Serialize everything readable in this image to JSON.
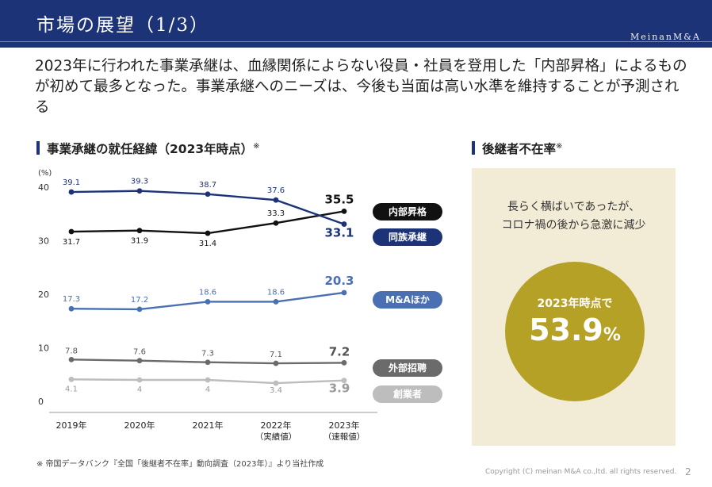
{
  "header": {
    "title": "市場の展望（1/3）",
    "brand": "MeinanM&A"
  },
  "lead": "2023年に行われた事業承継は、血縁関係によらない役員・社員を登用した「内部昇格」によるものが初めて最多となった。事業承継へのニーズは、今後も当面は高い水準を維持することが予測される",
  "left_section": {
    "title": "事業承継の就任経緯（2023年時点）",
    "mark": "※"
  },
  "right_section": {
    "title": "後継者不在率",
    "mark": "※",
    "note_line1": "長らく横ばいであったが、",
    "note_line2": "コロナ禍の後から急激に減少",
    "circle_label": "2023年時点で",
    "circle_value": "53.9",
    "circle_unit": "%"
  },
  "source": "※ 帝国データバンク『全国「後継者不在率」動向調査（2023年）』より当社作成",
  "copyright": "Copyright (C) meinan M&A co.,ltd. all rights reserved.",
  "page_number": "2",
  "chart_data": {
    "type": "line",
    "yunit": "(%)",
    "ylim": [
      0,
      40
    ],
    "yticks": [
      0,
      10,
      20,
      30,
      40
    ],
    "grid": false,
    "legend_position": "right",
    "categories": [
      {
        "line1": "2019年",
        "line2": ""
      },
      {
        "line1": "2020年",
        "line2": ""
      },
      {
        "line1": "2021年",
        "line2": ""
      },
      {
        "line1": "2022年",
        "line2": "（実績値）"
      },
      {
        "line1": "2023年",
        "line2": "（速報値）"
      }
    ],
    "series": [
      {
        "name": "内部昇格",
        "color": "#111111",
        "values": [
          31.7,
          31.9,
          31.4,
          33.3,
          35.5
        ],
        "labels": [
          "31.7",
          "31.9",
          "31.4",
          "33.3",
          "35.5"
        ]
      },
      {
        "name": "同族承継",
        "color": "#1d3378",
        "values": [
          39.1,
          39.3,
          38.7,
          37.6,
          33.1
        ],
        "labels": [
          "39.1",
          "39.3",
          "38.7",
          "37.6",
          "33.1"
        ]
      },
      {
        "name": "M&Aほか",
        "color": "#4a6fb3",
        "values": [
          17.3,
          17.2,
          18.6,
          18.6,
          20.3
        ],
        "labels": [
          "17.3",
          "17.2",
          "18.6",
          "18.6",
          "20.3"
        ]
      },
      {
        "name": "外部招聘",
        "color": "#6b6b6b",
        "values": [
          7.8,
          7.6,
          7.3,
          7.1,
          7.2
        ],
        "labels": [
          "7.8",
          "7.6",
          "7.3",
          "7.1",
          "7.2"
        ]
      },
      {
        "name": "創業者",
        "color": "#bdbdbd",
        "values": [
          4.1,
          4.0,
          4.0,
          3.4,
          3.9
        ],
        "labels": [
          "4.1",
          "4",
          "4",
          "3.4",
          "3.9"
        ]
      }
    ]
  }
}
